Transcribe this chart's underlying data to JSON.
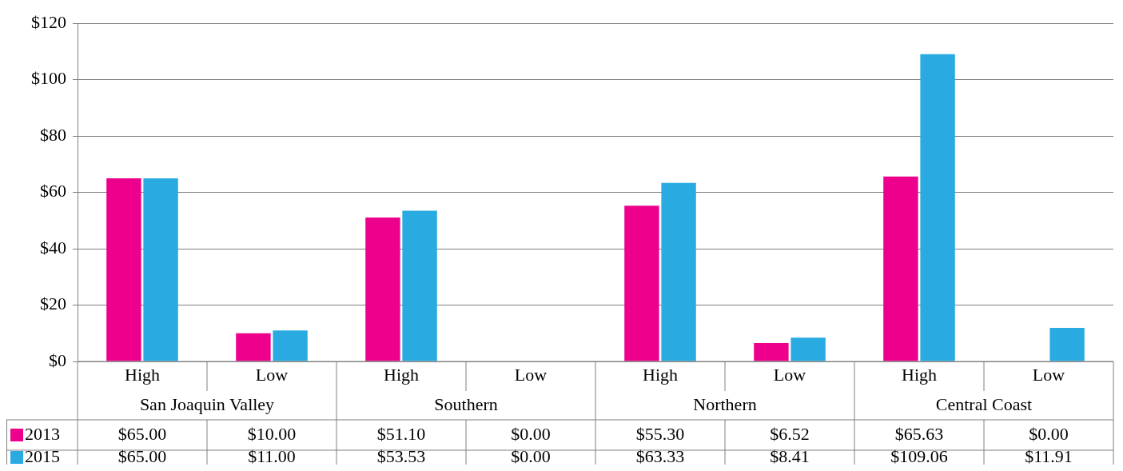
{
  "chart_data": {
    "type": "bar",
    "categories": [
      "High",
      "Low",
      "High",
      "Low",
      "High",
      "Low",
      "High",
      "Low"
    ],
    "annotations": [
      "San Joaquin Valley",
      "Southern",
      "Northern",
      "Central Coast"
    ],
    "series": [
      {
        "name": "2013",
        "color": "#ec008c",
        "values": [
          65.0,
          10.0,
          51.1,
          0.0,
          55.3,
          6.52,
          65.63,
          0.0
        ],
        "value_labels": [
          "$65.00",
          "$10.00",
          "$51.10",
          "$0.00",
          "$55.30",
          "$6.52",
          "$65.63",
          "$0.00"
        ]
      },
      {
        "name": "2015",
        "color": "#29abe2",
        "values": [
          65.0,
          11.0,
          53.53,
          0.0,
          63.33,
          8.41,
          109.06,
          11.91
        ],
        "value_labels": [
          "$65.00",
          "$11.00",
          "$53.53",
          "$0.00",
          "$63.33",
          "$8.41",
          "$109.06",
          "$11.91"
        ]
      }
    ],
    "ylim": [
      0,
      120
    ],
    "yticks": [
      {
        "value": 0,
        "label": "$0"
      },
      {
        "value": 20,
        "label": "$20"
      },
      {
        "value": 40,
        "label": "$40"
      },
      {
        "value": 60,
        "label": "$60"
      },
      {
        "value": 80,
        "label": "$80"
      },
      {
        "value": 100,
        "label": "$100"
      },
      {
        "value": 120,
        "label": "$120"
      }
    ],
    "grid": "y",
    "legend": "bottom left"
  }
}
